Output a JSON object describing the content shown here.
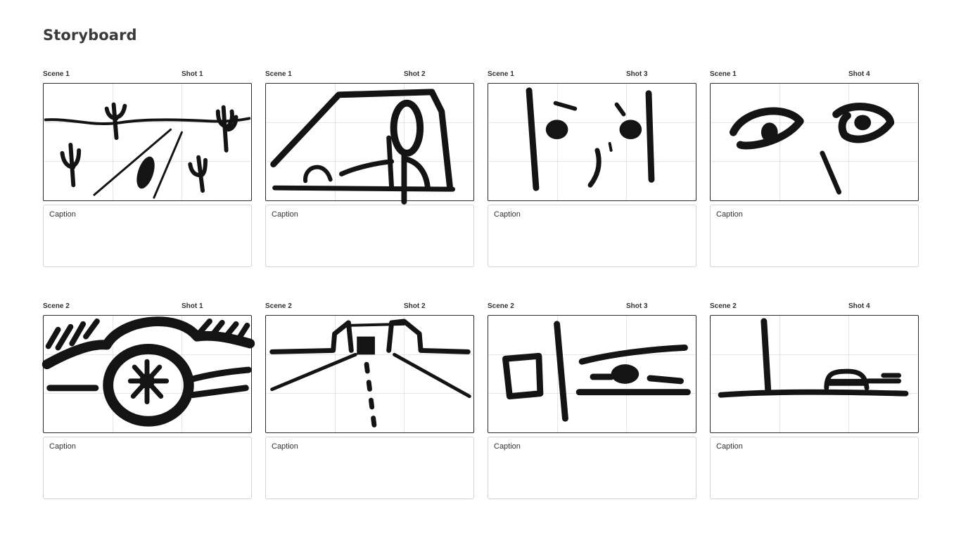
{
  "page": {
    "title": "Storyboard"
  },
  "shots": [
    {
      "scene": "Scene 1",
      "shot": "Shot 1",
      "caption": "Caption",
      "sketch": "desert-road-cacti"
    },
    {
      "scene": "Scene 1",
      "shot": "Shot 2",
      "caption": "Caption",
      "sketch": "car-interior-driver"
    },
    {
      "scene": "Scene 1",
      "shot": "Shot 3",
      "caption": "Caption",
      "sketch": "face-closeup"
    },
    {
      "scene": "Scene 1",
      "shot": "Shot 4",
      "caption": "Caption",
      "sketch": "eyes-closeup"
    },
    {
      "scene": "Scene 2",
      "shot": "Shot 1",
      "caption": "Caption",
      "sketch": "car-wheel"
    },
    {
      "scene": "Scene 2",
      "shot": "Shot 2",
      "caption": "Caption",
      "sketch": "road-perspective"
    },
    {
      "scene": "Scene 2",
      "shot": "Shot 3",
      "caption": "Caption",
      "sketch": "sign-and-car"
    },
    {
      "scene": "Scene 2",
      "shot": "Shot 4",
      "caption": "Caption",
      "sketch": "pole-and-distant-car"
    }
  ]
}
